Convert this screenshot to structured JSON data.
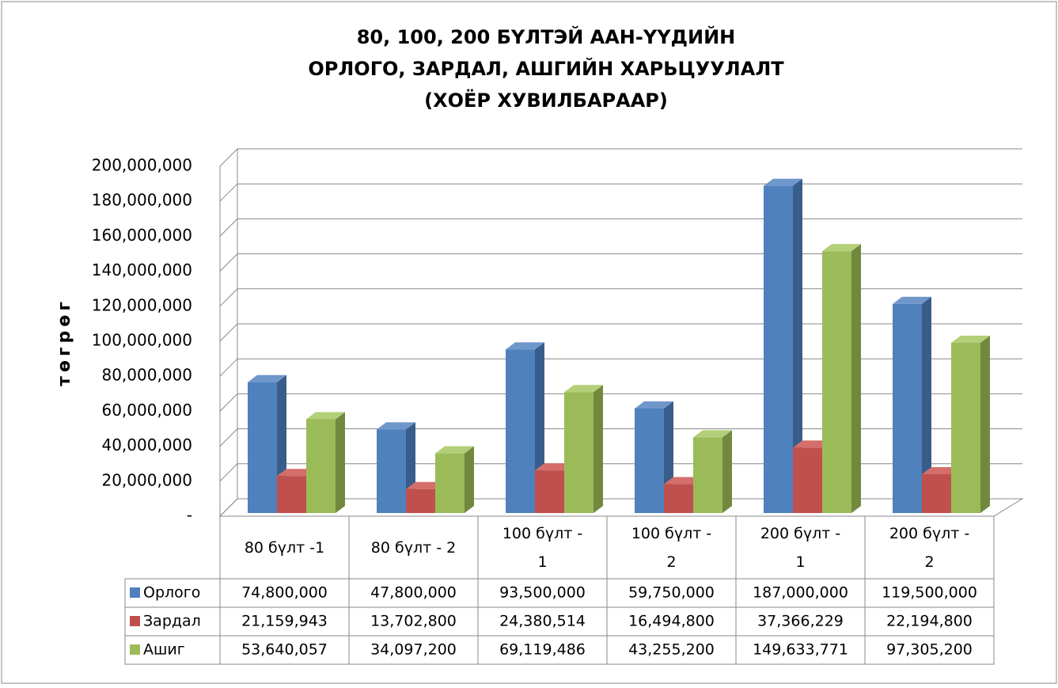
{
  "chart_data": {
    "type": "bar3d",
    "title": [
      "80, 100, 200 БҮЛТЭЙ ААН-ҮҮДИЙН",
      "ОРЛОГО, ЗАРДАЛ, АШГИЙН ХАРЬЦУУЛАЛТ",
      "(ХОЁР ХУВИЛБАРААР)"
    ],
    "y_label": "төгрөг",
    "categories": [
      "80 бүлт -1",
      "80 бүлт - 2",
      "100 бүлт - 1",
      "100 бүлт - 2",
      "200 бүлт - 1",
      "200 бүлт - 2"
    ],
    "series": [
      {
        "name": "Орлого",
        "color": "#4f81bd",
        "side": "#385d8a",
        "top": "#6f97cc",
        "values": [
          74800000,
          47800000,
          93500000,
          59750000,
          187000000,
          119500000
        ],
        "value_labels": [
          "74,800,000",
          "47,800,000",
          "93,500,000",
          "59,750,000",
          "187,000,000",
          "119,500,000"
        ]
      },
      {
        "name": "Зардал",
        "color": "#c0504d",
        "side": "#8c3836",
        "top": "#d46e6b",
        "values": [
          21159943,
          13702800,
          24380514,
          16494800,
          37366229,
          22194800
        ],
        "value_labels": [
          "21,159,943",
          "13,702,800",
          "24,380,514",
          "16,494,800",
          "37,366,229",
          "22,194,800"
        ]
      },
      {
        "name": "Ашиг",
        "color": "#9bbb59",
        "side": "#71893f",
        "top": "#b3cf78",
        "values": [
          53640057,
          34097200,
          69119486,
          43255200,
          149633771,
          97305200
        ],
        "value_labels": [
          "53,640,057",
          "34,097,200",
          "69,119,486",
          "43,255,200",
          "149,633,771",
          "97,305,200"
        ]
      }
    ],
    "ylim": [
      0,
      200000000
    ],
    "yticks": [
      {
        "value": 0,
        "label": "-"
      },
      {
        "value": 20000000,
        "label": "20,000,000"
      },
      {
        "value": 40000000,
        "label": "40,000,000"
      },
      {
        "value": 60000000,
        "label": "60,000,000"
      },
      {
        "value": 80000000,
        "label": "80,000,000"
      },
      {
        "value": 100000000,
        "label": "100,000,000"
      },
      {
        "value": 120000000,
        "label": "120,000,000"
      },
      {
        "value": 140000000,
        "label": "140,000,000"
      },
      {
        "value": 160000000,
        "label": "160,000,000"
      },
      {
        "value": 180000000,
        "label": "180,000,000"
      },
      {
        "value": 200000000,
        "label": "200,000,000"
      }
    ],
    "grid": true
  }
}
